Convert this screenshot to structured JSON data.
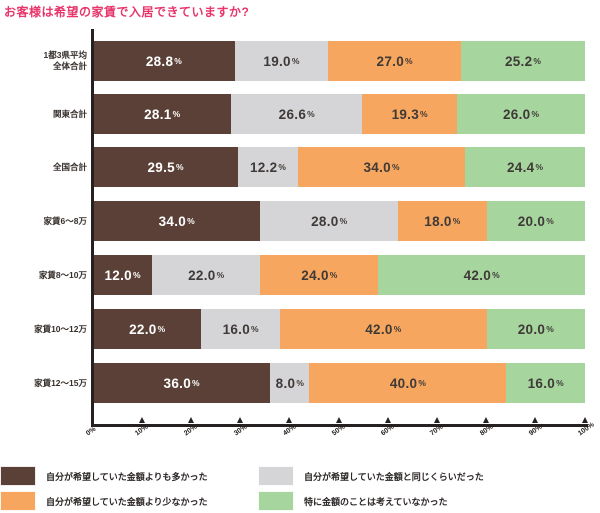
{
  "title": "お客様は希望の家賃で入居できていますか?",
  "colors": {
    "brown": "#5a4037",
    "gray": "#d5d4d6",
    "orange": "#f6a65e",
    "green": "#a6d69e",
    "title_pink": "#e8356b",
    "axis": "#262020",
    "text_on_dark": "#ffffff",
    "text_on_light": "#3f3a38"
  },
  "chart_data": {
    "type": "bar",
    "stacked": true,
    "orientation": "horizontal",
    "title": "お客様は希望の家賃で入居できていますか?",
    "xlabel": "",
    "ylabel": "",
    "xlim": [
      0,
      100
    ],
    "grid": false,
    "x_ticks": [
      "0%",
      "10%",
      "20%",
      "30%",
      "40%",
      "50%",
      "60%",
      "70%",
      "80%",
      "90%",
      "100%"
    ],
    "categories": [
      [
        "1都3県平均",
        "全体合計"
      ],
      [
        "関東合計"
      ],
      [
        "全国合計"
      ],
      [
        "家賃6〜8万"
      ],
      [
        "家賃8〜10万"
      ],
      [
        "家賃10〜12万"
      ],
      [
        "家賃12〜15万"
      ]
    ],
    "series": [
      {
        "name": "自分が希望していた金額よりも多かった",
        "color_key": "brown",
        "values": [
          28.8,
          28.1,
          29.5,
          34.0,
          12.0,
          22.0,
          36.0
        ]
      },
      {
        "name": "自分が希望していた金額と同じくらいだった",
        "color_key": "gray",
        "values": [
          19.0,
          26.6,
          12.2,
          28.0,
          22.0,
          16.0,
          8.0
        ]
      },
      {
        "name": "自分が希望していた金額より少なかった",
        "color_key": "orange",
        "values": [
          27.0,
          19.3,
          34.0,
          18.0,
          24.0,
          42.0,
          40.0
        ]
      },
      {
        "name": "特に金額のことは考えていなかった",
        "color_key": "green",
        "values": [
          25.2,
          26.0,
          24.4,
          20.0,
          42.0,
          20.0,
          16.0
        ]
      }
    ]
  },
  "legend": {
    "items": [
      {
        "label": "自分が希望していた金額よりも多かった",
        "color_key": "brown"
      },
      {
        "label": "自分が希望していた金額と同じくらいだった",
        "color_key": "gray"
      },
      {
        "label": "自分が希望していた金額より少なかった",
        "color_key": "orange"
      },
      {
        "label": "特に金額のことは考えていなかった",
        "color_key": "green"
      }
    ]
  }
}
